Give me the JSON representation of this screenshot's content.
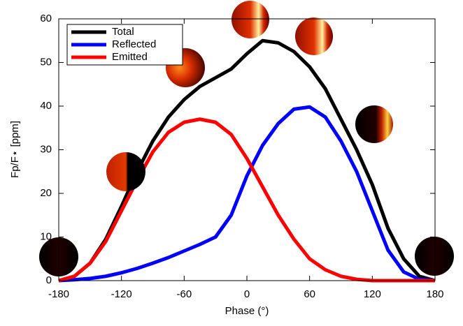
{
  "chart_data": {
    "type": "line",
    "xlabel": "Phase (°)",
    "ylabel": "Fp/F⋆ [ppm]",
    "x": [
      -180,
      -165,
      -150,
      -135,
      -120,
      -105,
      -90,
      -75,
      -60,
      -45,
      -30,
      -15,
      0,
      15,
      30,
      45,
      60,
      75,
      90,
      105,
      120,
      135,
      150,
      165,
      180
    ],
    "series": [
      {
        "name": "Total",
        "color": "#000000",
        "values": [
          0,
          1,
          4,
          9.5,
          17,
          25,
          32,
          37.5,
          41.5,
          44.5,
          46.5,
          48.5,
          52,
          55,
          54.5,
          52.5,
          49,
          44,
          37,
          30,
          22,
          12,
          5,
          1,
          0
        ]
      },
      {
        "name": "Reflected",
        "color": "#0000ff",
        "values": [
          0,
          0.2,
          0.5,
          1,
          1.8,
          2.8,
          4,
          5.3,
          6.8,
          8.3,
          10,
          15,
          24,
          31,
          36,
          39.3,
          39.8,
          37.5,
          32,
          25,
          16,
          7,
          2,
          0.3,
          0
        ]
      },
      {
        "name": "Emitted",
        "color": "#ff0000",
        "values": [
          0,
          1,
          4,
          9,
          16,
          23,
          29.5,
          34,
          36.3,
          37,
          36.3,
          33.5,
          28,
          21.5,
          15,
          9.5,
          5,
          2.5,
          1,
          0.3,
          0,
          0,
          0,
          0,
          0
        ]
      }
    ],
    "xlim": [
      -180,
      180
    ],
    "ylim": [
      0,
      60
    ],
    "xticks": [
      -180,
      -120,
      -60,
      0,
      60,
      120,
      180
    ],
    "yticks": [
      0,
      10,
      20,
      30,
      40,
      50,
      60
    ],
    "legend": "upper-left"
  }
}
